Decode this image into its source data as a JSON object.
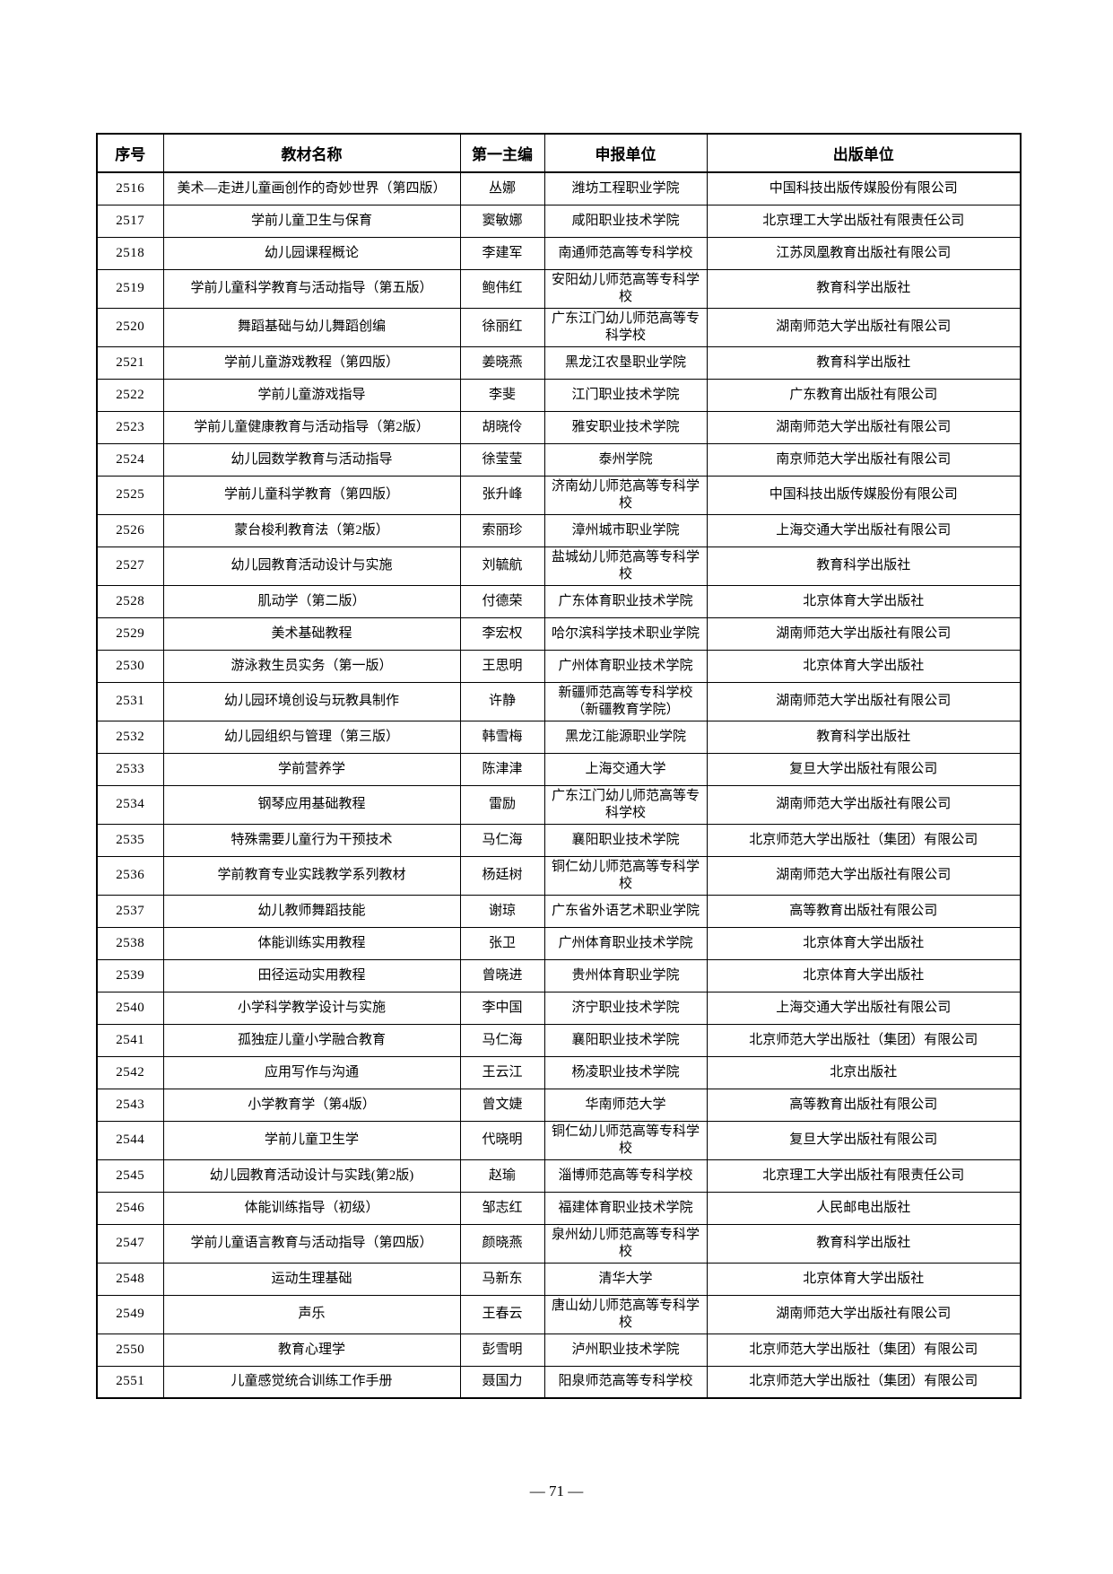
{
  "footer": {
    "page_number": "— 71 —"
  },
  "table": {
    "headers": [
      "序号",
      "教材名称",
      "第一主编",
      "申报单位",
      "出版单位"
    ],
    "rows": [
      [
        "2516",
        "美术—走进儿童画创作的奇妙世界（第四版）",
        "丛娜",
        "潍坊工程职业学院",
        "中国科技出版传媒股份有限公司"
      ],
      [
        "2517",
        "学前儿童卫生与保育",
        "窦敏娜",
        "咸阳职业技术学院",
        "北京理工大学出版社有限责任公司"
      ],
      [
        "2518",
        "幼儿园课程概论",
        "李建军",
        "南通师范高等专科学校",
        "江苏凤凰教育出版社有限公司"
      ],
      [
        "2519",
        "学前儿童科学教育与活动指导（第五版）",
        "鲍伟红",
        "安阳幼儿师范高等专科学校",
        "教育科学出版社"
      ],
      [
        "2520",
        "舞蹈基础与幼儿舞蹈创编",
        "徐丽红",
        "广东江门幼儿师范高等专科学校",
        "湖南师范大学出版社有限公司"
      ],
      [
        "2521",
        "学前儿童游戏教程（第四版）",
        "姜晓燕",
        "黑龙江农垦职业学院",
        "教育科学出版社"
      ],
      [
        "2522",
        "学前儿童游戏指导",
        "李斐",
        "江门职业技术学院",
        "广东教育出版社有限公司"
      ],
      [
        "2523",
        "学前儿童健康教育与活动指导（第2版）",
        "胡晓伶",
        "雅安职业技术学院",
        "湖南师范大学出版社有限公司"
      ],
      [
        "2524",
        "幼儿园数学教育与活动指导",
        "徐莹莹",
        "泰州学院",
        "南京师范大学出版社有限公司"
      ],
      [
        "2525",
        "学前儿童科学教育（第四版）",
        "张升峰",
        "济南幼儿师范高等专科学校",
        "中国科技出版传媒股份有限公司"
      ],
      [
        "2526",
        "蒙台梭利教育法（第2版）",
        "索丽珍",
        "漳州城市职业学院",
        "上海交通大学出版社有限公司"
      ],
      [
        "2527",
        "幼儿园教育活动设计与实施",
        "刘毓航",
        "盐城幼儿师范高等专科学校",
        "教育科学出版社"
      ],
      [
        "2528",
        "肌动学（第二版）",
        "付德荣",
        "广东体育职业技术学院",
        "北京体育大学出版社"
      ],
      [
        "2529",
        "美术基础教程",
        "李宏权",
        "哈尔滨科学技术职业学院",
        "湖南师范大学出版社有限公司"
      ],
      [
        "2530",
        "游泳救生员实务（第一版）",
        "王思明",
        "广州体育职业技术学院",
        "北京体育大学出版社"
      ],
      [
        "2531",
        "幼儿园环境创设与玩教具制作",
        "许静",
        "新疆师范高等专科学校（新疆教育学院）",
        "湖南师范大学出版社有限公司"
      ],
      [
        "2532",
        "幼儿园组织与管理（第三版）",
        "韩雪梅",
        "黑龙江能源职业学院",
        "教育科学出版社"
      ],
      [
        "2533",
        "学前营养学",
        "陈津津",
        "上海交通大学",
        "复旦大学出版社有限公司"
      ],
      [
        "2534",
        "钢琴应用基础教程",
        "雷励",
        "广东江门幼儿师范高等专科学校",
        "湖南师范大学出版社有限公司"
      ],
      [
        "2535",
        "特殊需要儿童行为干预技术",
        "马仁海",
        "襄阳职业技术学院",
        "北京师范大学出版社（集团）有限公司"
      ],
      [
        "2536",
        "学前教育专业实践教学系列教材",
        "杨廷树",
        "铜仁幼儿师范高等专科学校",
        "湖南师范大学出版社有限公司"
      ],
      [
        "2537",
        "幼儿教师舞蹈技能",
        "谢琼",
        "广东省外语艺术职业学院",
        "高等教育出版社有限公司"
      ],
      [
        "2538",
        "体能训练实用教程",
        "张卫",
        "广州体育职业技术学院",
        "北京体育大学出版社"
      ],
      [
        "2539",
        "田径运动实用教程",
        "曾晓进",
        "贵州体育职业学院",
        "北京体育大学出版社"
      ],
      [
        "2540",
        "小学科学教学设计与实施",
        "李中国",
        "济宁职业技术学院",
        "上海交通大学出版社有限公司"
      ],
      [
        "2541",
        "孤独症儿童小学融合教育",
        "马仁海",
        "襄阳职业技术学院",
        "北京师范大学出版社（集团）有限公司"
      ],
      [
        "2542",
        "应用写作与沟通",
        "王云江",
        "杨凌职业技术学院",
        "北京出版社"
      ],
      [
        "2543",
        "小学教育学（第4版）",
        "曾文婕",
        "华南师范大学",
        "高等教育出版社有限公司"
      ],
      [
        "2544",
        "学前儿童卫生学",
        "代晓明",
        "铜仁幼儿师范高等专科学校",
        "复旦大学出版社有限公司"
      ],
      [
        "2545",
        "幼儿园教育活动设计与实践(第2版)",
        "赵瑜",
        "淄博师范高等专科学校",
        "北京理工大学出版社有限责任公司"
      ],
      [
        "2546",
        "体能训练指导（初级）",
        "邹志红",
        "福建体育职业技术学院",
        "人民邮电出版社"
      ],
      [
        "2547",
        "学前儿童语言教育与活动指导（第四版）",
        "颜晓燕",
        "泉州幼儿师范高等专科学校",
        "教育科学出版社"
      ],
      [
        "2548",
        "运动生理基础",
        "马新东",
        "清华大学",
        "北京体育大学出版社"
      ],
      [
        "2549",
        "声乐",
        "王春云",
        "唐山幼儿师范高等专科学校",
        "湖南师范大学出版社有限公司"
      ],
      [
        "2550",
        "教育心理学",
        "彭雪明",
        "泸州职业技术学院",
        "北京师范大学出版社（集团）有限公司"
      ],
      [
        "2551",
        "儿童感觉统合训练工作手册",
        "聂国力",
        "阳泉师范高等专科学校",
        "北京师范大学出版社（集团）有限公司"
      ]
    ]
  }
}
